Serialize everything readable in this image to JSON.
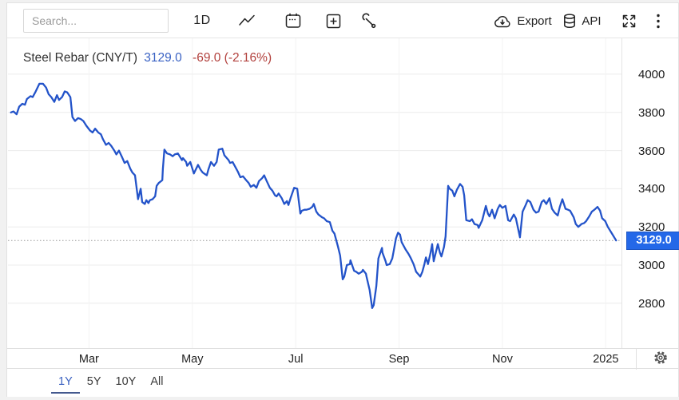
{
  "toolbar": {
    "search_placeholder": "Search...",
    "interval_label": "1D",
    "export_label": "Export",
    "api_label": "API"
  },
  "chart_header": {
    "title": "Steel Rebar (CNY/T)",
    "price": "3129.0",
    "change": "-69.0 (-2.16%)"
  },
  "price_badge": "3129.0",
  "range_tabs": [
    {
      "label": "1Y",
      "active": true
    },
    {
      "label": "5Y",
      "active": false
    },
    {
      "label": "10Y",
      "active": false
    },
    {
      "label": "All",
      "active": false
    }
  ],
  "colors": {
    "line": "#2353c9",
    "grid_h": "#ececec",
    "grid_v": "#f3f3f3",
    "dotted": "#999999",
    "axis_border": "#e4e4e4",
    "badge_bg": "#2468e8",
    "title": "#333333",
    "price_text": "#3a62c4",
    "change_text": "#b2413d"
  },
  "chart_data": {
    "type": "line",
    "title": "Steel Rebar (CNY/T)",
    "series_name": "Steel Rebar price (CNY/T), 1Y daily",
    "x_unit": "months since 2024-01-01",
    "xlim": [
      0.433,
      12.304
    ],
    "ylim": [
      2565,
      4188
    ],
    "y_ticks": [
      2800,
      3000,
      3200,
      3400,
      3600,
      3800,
      4000
    ],
    "x_ticks": [
      {
        "pos": 2,
        "label": "Mar"
      },
      {
        "pos": 4,
        "label": "May"
      },
      {
        "pos": 6,
        "label": "Jul"
      },
      {
        "pos": 8,
        "label": "Sep"
      },
      {
        "pos": 10,
        "label": "Nov"
      },
      {
        "pos": 12,
        "label": "2025"
      }
    ],
    "grid": true,
    "legend": false,
    "current_value": 3129.0,
    "change": -69.0,
    "change_pct": -2.16,
    "points": [
      [
        0.49,
        3800
      ],
      [
        0.54,
        3805
      ],
      [
        0.6,
        3790
      ],
      [
        0.65,
        3830
      ],
      [
        0.71,
        3845
      ],
      [
        0.76,
        3840
      ],
      [
        0.8,
        3870
      ],
      [
        0.87,
        3885
      ],
      [
        0.91,
        3880
      ],
      [
        0.96,
        3905
      ],
      [
        1.04,
        3950
      ],
      [
        1.11,
        3950
      ],
      [
        1.17,
        3930
      ],
      [
        1.22,
        3895
      ],
      [
        1.27,
        3880
      ],
      [
        1.33,
        3855
      ],
      [
        1.38,
        3890
      ],
      [
        1.42,
        3865
      ],
      [
        1.48,
        3880
      ],
      [
        1.53,
        3910
      ],
      [
        1.58,
        3905
      ],
      [
        1.64,
        3880
      ],
      [
        1.68,
        3775
      ],
      [
        1.73,
        3755
      ],
      [
        1.79,
        3770
      ],
      [
        1.84,
        3765
      ],
      [
        1.89,
        3755
      ],
      [
        1.95,
        3730
      ],
      [
        2.02,
        3705
      ],
      [
        2.07,
        3695
      ],
      [
        2.12,
        3715
      ],
      [
        2.18,
        3695
      ],
      [
        2.23,
        3685
      ],
      [
        2.27,
        3660
      ],
      [
        2.33,
        3630
      ],
      [
        2.38,
        3640
      ],
      [
        2.43,
        3625
      ],
      [
        2.49,
        3600
      ],
      [
        2.53,
        3580
      ],
      [
        2.58,
        3600
      ],
      [
        2.64,
        3565
      ],
      [
        2.69,
        3535
      ],
      [
        2.74,
        3545
      ],
      [
        2.8,
        3505
      ],
      [
        2.84,
        3485
      ],
      [
        2.89,
        3470
      ],
      [
        2.95,
        3345
      ],
      [
        3.0,
        3400
      ],
      [
        3.03,
        3330
      ],
      [
        3.08,
        3320
      ],
      [
        3.11,
        3340
      ],
      [
        3.15,
        3325
      ],
      [
        3.18,
        3340
      ],
      [
        3.23,
        3345
      ],
      [
        3.28,
        3360
      ],
      [
        3.31,
        3415
      ],
      [
        3.35,
        3430
      ],
      [
        3.42,
        3445
      ],
      [
        3.43,
        3505
      ],
      [
        3.46,
        3605
      ],
      [
        3.51,
        3585
      ],
      [
        3.57,
        3580
      ],
      [
        3.62,
        3570
      ],
      [
        3.66,
        3580
      ],
      [
        3.72,
        3585
      ],
      [
        3.8,
        3550
      ],
      [
        3.82,
        3560
      ],
      [
        3.88,
        3540
      ],
      [
        3.9,
        3520
      ],
      [
        3.96,
        3540
      ],
      [
        4.03,
        3480
      ],
      [
        4.11,
        3525
      ],
      [
        4.16,
        3500
      ],
      [
        4.2,
        3485
      ],
      [
        4.28,
        3470
      ],
      [
        4.31,
        3500
      ],
      [
        4.36,
        3540
      ],
      [
        4.42,
        3520
      ],
      [
        4.47,
        3540
      ],
      [
        4.51,
        3605
      ],
      [
        4.58,
        3610
      ],
      [
        4.62,
        3575
      ],
      [
        4.7,
        3550
      ],
      [
        4.73,
        3535
      ],
      [
        4.78,
        3540
      ],
      [
        4.82,
        3520
      ],
      [
        4.88,
        3490
      ],
      [
        4.93,
        3460
      ],
      [
        4.98,
        3465
      ],
      [
        5.04,
        3445
      ],
      [
        5.09,
        3430
      ],
      [
        5.13,
        3410
      ],
      [
        5.19,
        3420
      ],
      [
        5.24,
        3405
      ],
      [
        5.29,
        3440
      ],
      [
        5.35,
        3455
      ],
      [
        5.39,
        3470
      ],
      [
        5.44,
        3440
      ],
      [
        5.5,
        3405
      ],
      [
        5.55,
        3390
      ],
      [
        5.6,
        3365
      ],
      [
        5.63,
        3360
      ],
      [
        5.67,
        3375
      ],
      [
        5.73,
        3350
      ],
      [
        5.78,
        3320
      ],
      [
        5.83,
        3335
      ],
      [
        5.86,
        3315
      ],
      [
        5.9,
        3350
      ],
      [
        5.97,
        3405
      ],
      [
        6.03,
        3400
      ],
      [
        6.09,
        3270
      ],
      [
        6.12,
        3285
      ],
      [
        6.17,
        3290
      ],
      [
        6.21,
        3290
      ],
      [
        6.27,
        3295
      ],
      [
        6.32,
        3305
      ],
      [
        6.35,
        3320
      ],
      [
        6.4,
        3280
      ],
      [
        6.44,
        3265
      ],
      [
        6.51,
        3250
      ],
      [
        6.55,
        3245
      ],
      [
        6.6,
        3230
      ],
      [
        6.66,
        3225
      ],
      [
        6.71,
        3180
      ],
      [
        6.75,
        3165
      ],
      [
        6.82,
        3095
      ],
      [
        6.86,
        3050
      ],
      [
        6.91,
        2925
      ],
      [
        6.94,
        2940
      ],
      [
        6.99,
        3000
      ],
      [
        7.05,
        3005
      ],
      [
        7.06,
        3025
      ],
      [
        7.13,
        2970
      ],
      [
        7.17,
        2965
      ],
      [
        7.22,
        2955
      ],
      [
        7.28,
        2965
      ],
      [
        7.3,
        2975
      ],
      [
        7.36,
        2955
      ],
      [
        7.37,
        2940
      ],
      [
        7.43,
        2870
      ],
      [
        7.48,
        2775
      ],
      [
        7.51,
        2790
      ],
      [
        7.56,
        2890
      ],
      [
        7.6,
        3035
      ],
      [
        7.67,
        3090
      ],
      [
        7.68,
        3065
      ],
      [
        7.74,
        3020
      ],
      [
        7.76,
        3000
      ],
      [
        7.82,
        3005
      ],
      [
        7.87,
        3035
      ],
      [
        7.9,
        3080
      ],
      [
        7.94,
        3140
      ],
      [
        7.98,
        3170
      ],
      [
        8.02,
        3160
      ],
      [
        8.05,
        3120
      ],
      [
        8.13,
        3080
      ],
      [
        8.18,
        3060
      ],
      [
        8.22,
        3040
      ],
      [
        8.28,
        3005
      ],
      [
        8.33,
        2965
      ],
      [
        8.38,
        2950
      ],
      [
        8.41,
        2940
      ],
      [
        8.45,
        2965
      ],
      [
        8.49,
        3005
      ],
      [
        8.52,
        3040
      ],
      [
        8.56,
        3005
      ],
      [
        8.61,
        3065
      ],
      [
        8.64,
        3110
      ],
      [
        8.67,
        3020
      ],
      [
        8.72,
        3075
      ],
      [
        8.75,
        3110
      ],
      [
        8.79,
        3065
      ],
      [
        8.82,
        3045
      ],
      [
        8.87,
        3095
      ],
      [
        8.9,
        3150
      ],
      [
        8.95,
        3415
      ],
      [
        8.98,
        3400
      ],
      [
        9.03,
        3390
      ],
      [
        9.07,
        3360
      ],
      [
        9.12,
        3395
      ],
      [
        9.18,
        3425
      ],
      [
        9.23,
        3410
      ],
      [
        9.26,
        3365
      ],
      [
        9.3,
        3235
      ],
      [
        9.37,
        3230
      ],
      [
        9.41,
        3240
      ],
      [
        9.46,
        3215
      ],
      [
        9.52,
        3210
      ],
      [
        9.54,
        3195
      ],
      [
        9.61,
        3235
      ],
      [
        9.68,
        3310
      ],
      [
        9.72,
        3270
      ],
      [
        9.75,
        3255
      ],
      [
        9.8,
        3290
      ],
      [
        9.85,
        3245
      ],
      [
        9.91,
        3295
      ],
      [
        9.95,
        3315
      ],
      [
        10.0,
        3300
      ],
      [
        10.06,
        3310
      ],
      [
        10.11,
        3235
      ],
      [
        10.15,
        3230
      ],
      [
        10.22,
        3265
      ],
      [
        10.26,
        3245
      ],
      [
        10.34,
        3145
      ],
      [
        10.39,
        3280
      ],
      [
        10.45,
        3315
      ],
      [
        10.49,
        3340
      ],
      [
        10.54,
        3330
      ],
      [
        10.6,
        3290
      ],
      [
        10.65,
        3275
      ],
      [
        10.7,
        3280
      ],
      [
        10.76,
        3330
      ],
      [
        10.8,
        3340
      ],
      [
        10.85,
        3320
      ],
      [
        10.91,
        3350
      ],
      [
        10.96,
        3295
      ],
      [
        11.01,
        3275
      ],
      [
        11.07,
        3260
      ],
      [
        11.11,
        3305
      ],
      [
        11.16,
        3345
      ],
      [
        11.22,
        3295
      ],
      [
        11.27,
        3290
      ],
      [
        11.31,
        3285
      ],
      [
        11.38,
        3250
      ],
      [
        11.42,
        3215
      ],
      [
        11.47,
        3200
      ],
      [
        11.53,
        3215
      ],
      [
        11.58,
        3220
      ],
      [
        11.62,
        3230
      ],
      [
        11.68,
        3255
      ],
      [
        11.73,
        3280
      ],
      [
        11.78,
        3290
      ],
      [
        11.84,
        3305
      ],
      [
        11.89,
        3285
      ],
      [
        11.93,
        3245
      ],
      [
        11.99,
        3230
      ],
      [
        12.04,
        3200
      ],
      [
        12.12,
        3165
      ],
      [
        12.2,
        3129
      ]
    ]
  }
}
